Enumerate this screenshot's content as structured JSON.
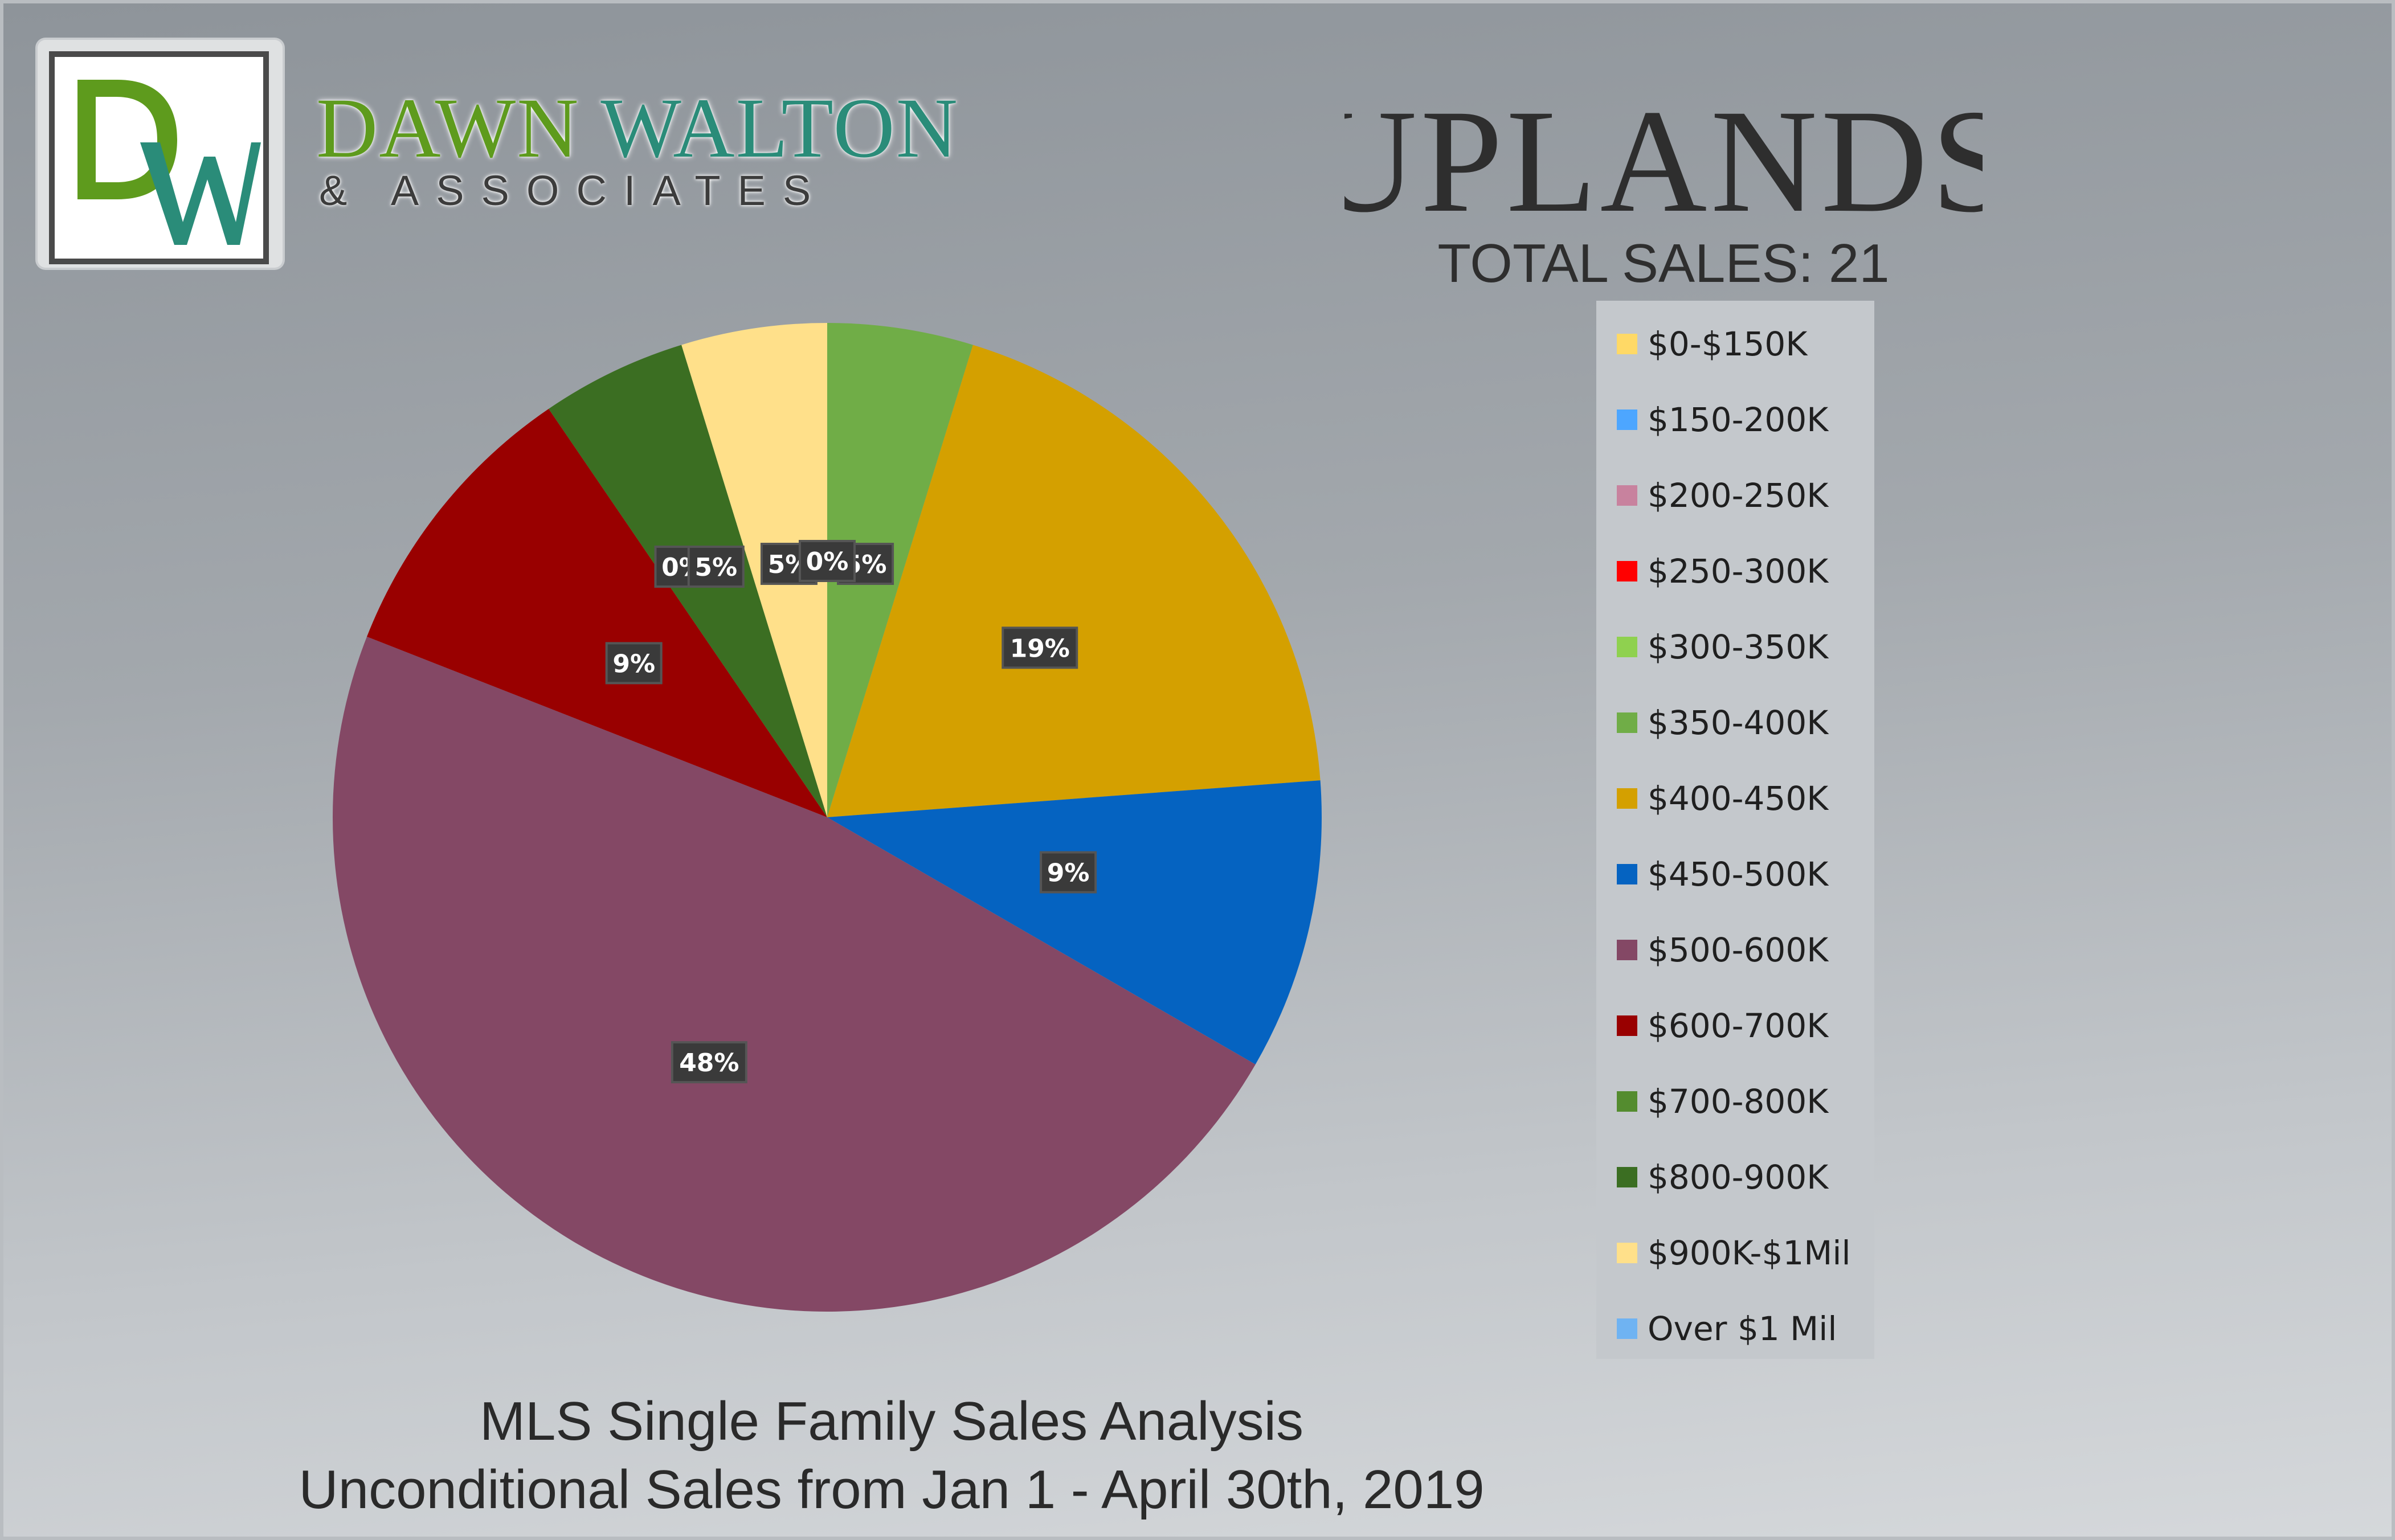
{
  "brand": {
    "logo_initials": "DW",
    "name_first": "DAWN",
    "name_last": "WALTON",
    "sub": "& ASSOCIATES"
  },
  "header": {
    "title": "Uplands",
    "total_sales": "TOTAL SALES: 21"
  },
  "footer": {
    "line1": "MLS Single Family Sales Analysis",
    "line2": "Unconditional Sales from Jan 1 - April 30th, 2019"
  },
  "chart_data": {
    "type": "pie",
    "title": "Uplands",
    "categories": [
      "$0-$150K",
      "$150-200K",
      "$200-250K",
      "$250-300K",
      "$300-350K",
      "$350-400K",
      "$400-450K",
      "$450-500K",
      "$500-600K",
      "$600-700K",
      "$700-800K",
      "$800-900K",
      "$900K-$1Mil",
      "Over $1 Mil"
    ],
    "values": [
      0,
      0,
      0,
      0,
      0,
      1,
      4,
      2,
      10,
      2,
      0,
      1,
      1,
      0
    ],
    "labels": [
      "0%",
      "0%",
      "0%",
      "0%",
      "0%",
      "5%",
      "19%",
      "9%",
      "48%",
      "9%",
      "0%",
      "5%",
      "5%",
      "0%"
    ],
    "colors": [
      "#ffd966",
      "#4da6ff",
      "#c8829e",
      "#ff0000",
      "#8fd14f",
      "#70ad47",
      "#d4a000",
      "#0563c1",
      "#844865",
      "#990000",
      "#548c2f",
      "#3b6e22",
      "#ffe08a",
      "#6fb3f2"
    ],
    "legend_position": "right"
  }
}
